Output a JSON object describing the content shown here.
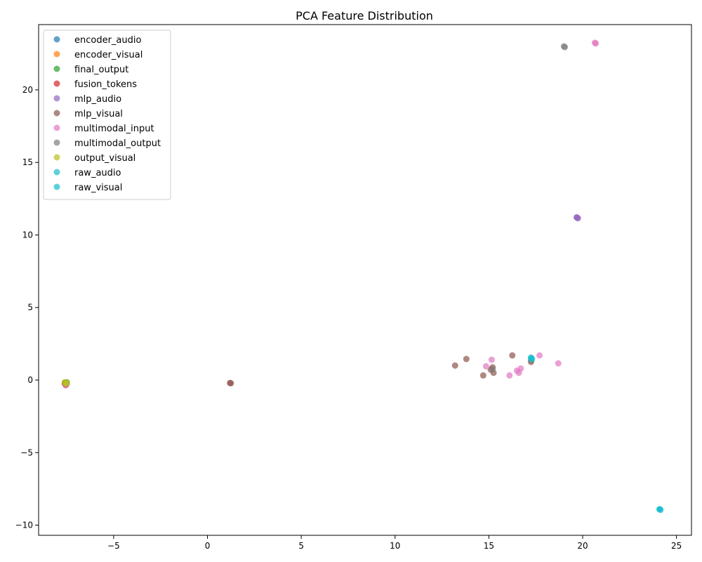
{
  "chart_data": {
    "type": "scatter",
    "title": "PCA Feature Distribution",
    "xlabel": "",
    "ylabel": "",
    "xlim": [
      -9,
      25.8
    ],
    "ylim": [
      -10.7,
      24.5
    ],
    "xticks": [
      -5,
      0,
      5,
      10,
      15,
      20,
      25
    ],
    "yticks": [
      -10,
      -5,
      0,
      5,
      10,
      15,
      20
    ],
    "grid": false,
    "legend_position": "top-left",
    "series": [
      {
        "name": "encoder_audio",
        "color": "#1f77b4",
        "points": [
          [
            -7.6,
            -0.2
          ],
          [
            -7.5,
            -0.25
          ]
        ]
      },
      {
        "name": "encoder_visual",
        "color": "#ff7f0e",
        "points": [
          [
            -7.6,
            -0.2
          ],
          [
            -7.55,
            -0.3
          ]
        ]
      },
      {
        "name": "final_output",
        "color": "#2ca02c",
        "points": [
          [
            -7.6,
            -0.2
          ],
          [
            -7.5,
            -0.15
          ]
        ]
      },
      {
        "name": "fusion_tokens",
        "color": "#d62728",
        "points": [
          [
            -7.55,
            -0.35
          ],
          [
            -7.6,
            -0.25
          ]
        ]
      },
      {
        "name": "mlp_audio",
        "color": "#9467bd",
        "points": [
          [
            19.7,
            11.2
          ],
          [
            19.75,
            11.15
          ],
          [
            19.68,
            11.22
          ]
        ]
      },
      {
        "name": "mlp_visual",
        "color": "#8c564b",
        "points": [
          [
            1.2,
            -0.2
          ],
          [
            1.25,
            -0.22
          ],
          [
            13.2,
            1.0
          ],
          [
            13.8,
            1.45
          ],
          [
            14.7,
            0.32
          ],
          [
            15.1,
            0.72
          ],
          [
            15.2,
            0.88
          ],
          [
            15.25,
            0.5
          ],
          [
            16.25,
            1.7
          ],
          [
            17.25,
            1.25
          ],
          [
            -7.55,
            -0.3
          ]
        ]
      },
      {
        "name": "multimodal_input",
        "color": "#e377c2",
        "points": [
          [
            20.7,
            23.2
          ],
          [
            20.65,
            23.25
          ],
          [
            14.85,
            0.95
          ],
          [
            15.15,
            1.4
          ],
          [
            16.1,
            0.32
          ],
          [
            16.5,
            0.65
          ],
          [
            16.6,
            0.5
          ],
          [
            16.7,
            0.8
          ],
          [
            17.7,
            1.7
          ],
          [
            18.7,
            1.15
          ],
          [
            -7.55,
            -0.35
          ]
        ]
      },
      {
        "name": "multimodal_output",
        "color": "#7f7f7f",
        "points": [
          [
            19.0,
            23.0
          ],
          [
            19.05,
            22.95
          ],
          [
            15.2,
            0.75
          ],
          [
            17.25,
            1.35
          ]
        ]
      },
      {
        "name": "output_visual",
        "color": "#bcbd22",
        "points": [
          [
            -7.6,
            -0.15
          ],
          [
            -7.5,
            -0.2
          ],
          [
            -7.55,
            -0.25
          ]
        ]
      },
      {
        "name": "raw_audio",
        "color": "#17becf",
        "points": [
          [
            24.1,
            -8.9
          ],
          [
            24.15,
            -8.95
          ],
          [
            17.25,
            1.5
          ],
          [
            17.3,
            1.45
          ]
        ]
      },
      {
        "name": "raw_visual",
        "color": "#17becf",
        "points": [
          [
            24.1,
            -8.9
          ],
          [
            17.25,
            1.55
          ]
        ]
      }
    ]
  }
}
